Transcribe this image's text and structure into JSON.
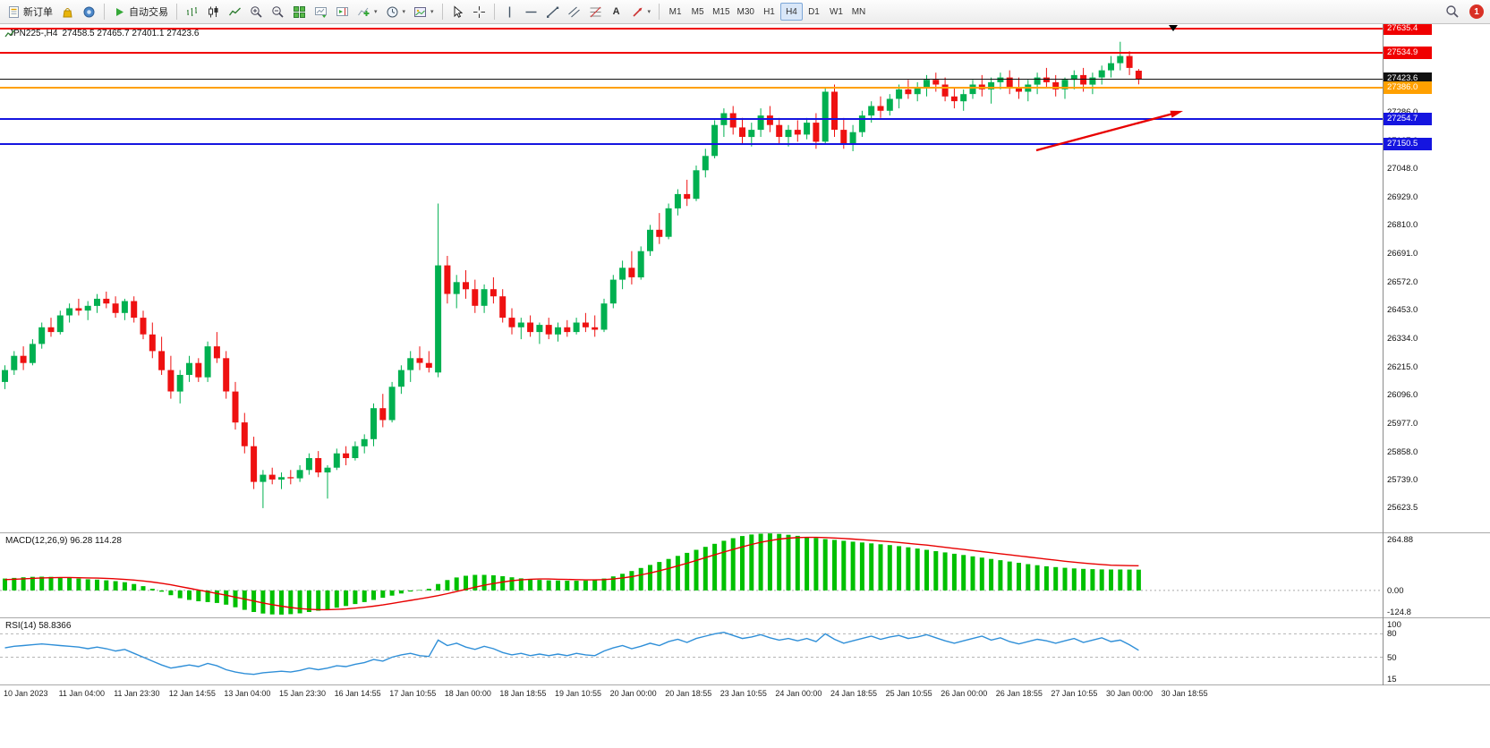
{
  "toolbar": {
    "new_order_label": "新订单",
    "auto_trading_label": "自动交易",
    "text_tool_glyph": "A",
    "timeframes": [
      "M1",
      "M5",
      "M15",
      "M30",
      "H1",
      "H4",
      "D1",
      "W1",
      "MN"
    ],
    "active_timeframe": "H4",
    "notification_badge": "1"
  },
  "chart": {
    "symbol_period": "JPN225-,H4",
    "ohlc_text": "27458.5 27465.7 27401.1 27423.6",
    "lines": [
      {
        "name": "resistance-line-upper",
        "label": "27635.4",
        "value": 27635.4,
        "color": "#f00000",
        "width": 2
      },
      {
        "name": "resistance-line-lower",
        "label": "27534.9",
        "value": 27534.9,
        "color": "#f00000",
        "width": 2
      },
      {
        "name": "current-price-line",
        "label": "27423.6",
        "value": 27423.6,
        "color": "#111111",
        "width": 1,
        "type": "current"
      },
      {
        "name": "pivot-line-orange",
        "label": "27386.0",
        "value": 27386.0,
        "color": "#ffa000",
        "width": 2
      },
      {
        "name": "support-line-upper",
        "label": "27254.7",
        "value": 27254.7,
        "color": "#1515e0",
        "width": 2
      },
      {
        "name": "support-line-lower",
        "label": "27150.5",
        "value": 27150.5,
        "color": "#1515e0",
        "width": 2
      }
    ],
    "y_ticks": [
      27643.0,
      27524.0,
      27405.0,
      27286.0,
      27167.0,
      27048.0,
      26929.0,
      26810.0,
      26691.0,
      26572.0,
      26453.0,
      26334.0,
      26215.0,
      26096.0,
      25977.0,
      25858.0,
      25739.0,
      25623.5
    ],
    "x_labels": [
      "10 Jan 2023",
      "11 Jan 04:00",
      "11 Jan 23:30",
      "12 Jan 14:55",
      "13 Jan 04:00",
      "15 Jan 23:30",
      "16 Jan 14:55",
      "17 Jan 10:55",
      "18 Jan 00:00",
      "18 Jan 18:55",
      "19 Jan 10:55",
      "20 Jan 00:00",
      "20 Jan 18:55",
      "23 Jan 10:55",
      "24 Jan 00:00",
      "24 Jan 18:55",
      "25 Jan 10:55",
      "26 Jan 00:00",
      "26 Jan 18:55",
      "27 Jan 10:55",
      "30 Jan 00:00",
      "30 Jan 18:55"
    ]
  },
  "macd": {
    "label": "MACD(12,26,9) 96.28 114.28",
    "ticks": [
      "264.88",
      "0.00",
      "-124.8"
    ]
  },
  "rsi": {
    "label": "RSI(14) 58.8366",
    "ticks": [
      "100",
      "80",
      "50",
      "15"
    ]
  },
  "chart_data": [
    {
      "type": "candlestick",
      "symbol": "JPN225-",
      "timeframe": "H4",
      "ylim": [
        25518,
        27654
      ],
      "bull_color": "#00b050",
      "bear_color": "#ee1111",
      "candles": [
        [
          26150,
          26220,
          26120,
          26200
        ],
        [
          26200,
          26280,
          26180,
          26260
        ],
        [
          26260,
          26300,
          26200,
          26230
        ],
        [
          26230,
          26330,
          26220,
          26310
        ],
        [
          26310,
          26400,
          26290,
          26380
        ],
        [
          26380,
          26420,
          26340,
          26360
        ],
        [
          26360,
          26450,
          26350,
          26430
        ],
        [
          26430,
          26480,
          26400,
          26460
        ],
        [
          26460,
          26500,
          26430,
          26450
        ],
        [
          26450,
          26490,
          26410,
          26470
        ],
        [
          26470,
          26520,
          26440,
          26500
        ],
        [
          26500,
          26530,
          26460,
          26480
        ],
        [
          26480,
          26510,
          26420,
          26440
        ],
        [
          26440,
          26500,
          26410,
          26490
        ],
        [
          26490,
          26510,
          26400,
          26420
        ],
        [
          26420,
          26450,
          26330,
          26350
        ],
        [
          26350,
          26400,
          26250,
          26280
        ],
        [
          26280,
          26340,
          26180,
          26200
        ],
        [
          26200,
          26260,
          26080,
          26110
        ],
        [
          26110,
          26200,
          26060,
          26180
        ],
        [
          26180,
          26260,
          26150,
          26230
        ],
        [
          26230,
          26250,
          26150,
          26170
        ],
        [
          26170,
          26320,
          26150,
          26300
        ],
        [
          26300,
          26360,
          26230,
          26250
        ],
        [
          26250,
          26280,
          26080,
          26110
        ],
        [
          26110,
          26150,
          25950,
          25980
        ],
        [
          25980,
          26020,
          25850,
          25880
        ],
        [
          25880,
          25920,
          25700,
          25730
        ],
        [
          25730,
          25780,
          25620,
          25760
        ],
        [
          25760,
          25790,
          25720,
          25740
        ],
        [
          25740,
          25770,
          25700,
          25750
        ],
        [
          25750,
          25780,
          25720,
          25745
        ],
        [
          25745,
          25800,
          25730,
          25780
        ],
        [
          25780,
          25850,
          25760,
          25830
        ],
        [
          25830,
          25860,
          25750,
          25770
        ],
        [
          25770,
          25800,
          25660,
          25790
        ],
        [
          25790,
          25870,
          25780,
          25850
        ],
        [
          25850,
          25880,
          25800,
          25830
        ],
        [
          25830,
          25900,
          25820,
          25880
        ],
        [
          25880,
          25930,
          25850,
          25910
        ],
        [
          25910,
          26060,
          25880,
          26040
        ],
        [
          26040,
          26100,
          25960,
          25990
        ],
        [
          25990,
          26150,
          25980,
          26130
        ],
        [
          26130,
          26220,
          26100,
          26200
        ],
        [
          26200,
          26280,
          26150,
          26250
        ],
        [
          26250,
          26300,
          26200,
          26230
        ],
        [
          26230,
          26280,
          26190,
          26210
        ],
        [
          26190,
          26900,
          26170,
          26640
        ],
        [
          26640,
          26680,
          26480,
          26520
        ],
        [
          26520,
          26600,
          26460,
          26570
        ],
        [
          26570,
          26620,
          26500,
          26540
        ],
        [
          26540,
          26580,
          26440,
          26470
        ],
        [
          26470,
          26560,
          26440,
          26540
        ],
        [
          26540,
          26590,
          26480,
          26510
        ],
        [
          26510,
          26540,
          26400,
          26420
        ],
        [
          26420,
          26460,
          26350,
          26380
        ],
        [
          26380,
          26420,
          26330,
          26400
        ],
        [
          26400,
          26430,
          26340,
          26360
        ],
        [
          26360,
          26400,
          26310,
          26390
        ],
        [
          26390,
          26420,
          26330,
          26350
        ],
        [
          26350,
          26400,
          26320,
          26380
        ],
        [
          26380,
          26410,
          26340,
          26360
        ],
        [
          26360,
          26420,
          26350,
          26400
        ],
        [
          26400,
          26440,
          26360,
          26380
        ],
        [
          26380,
          26430,
          26340,
          26370
        ],
        [
          26370,
          26500,
          26360,
          26480
        ],
        [
          26480,
          26600,
          26460,
          26580
        ],
        [
          26580,
          26660,
          26540,
          26630
        ],
        [
          26630,
          26700,
          26560,
          26590
        ],
        [
          26590,
          26720,
          26580,
          26700
        ],
        [
          26700,
          26810,
          26680,
          26790
        ],
        [
          26790,
          26860,
          26730,
          26760
        ],
        [
          26760,
          26900,
          26750,
          26880
        ],
        [
          26880,
          26960,
          26850,
          26940
        ],
        [
          26940,
          27000,
          26890,
          26920
        ],
        [
          26920,
          27060,
          26910,
          27040
        ],
        [
          27040,
          27130,
          27010,
          27100
        ],
        [
          27100,
          27250,
          27090,
          27230
        ],
        [
          27230,
          27300,
          27180,
          27280
        ],
        [
          27280,
          27310,
          27190,
          27220
        ],
        [
          27220,
          27260,
          27150,
          27180
        ],
        [
          27180,
          27240,
          27140,
          27210
        ],
        [
          27210,
          27300,
          27180,
          27270
        ],
        [
          27270,
          27310,
          27200,
          27230
        ],
        [
          27230,
          27260,
          27150,
          27180
        ],
        [
          27180,
          27230,
          27140,
          27210
        ],
        [
          27210,
          27250,
          27160,
          27190
        ],
        [
          27190,
          27260,
          27170,
          27240
        ],
        [
          27240,
          27280,
          27130,
          27160
        ],
        [
          27160,
          27390,
          27150,
          27370
        ],
        [
          27370,
          27400,
          27180,
          27210
        ],
        [
          27210,
          27260,
          27130,
          27150
        ],
        [
          27150,
          27230,
          27120,
          27200
        ],
        [
          27200,
          27290,
          27180,
          27270
        ],
        [
          27270,
          27330,
          27240,
          27310
        ],
        [
          27310,
          27350,
          27260,
          27290
        ],
        [
          27290,
          27360,
          27270,
          27340
        ],
        [
          27340,
          27400,
          27300,
          27380
        ],
        [
          27380,
          27420,
          27340,
          27360
        ],
        [
          27360,
          27410,
          27330,
          27390
        ],
        [
          27390,
          27440,
          27350,
          27420
        ],
        [
          27420,
          27450,
          27370,
          27400
        ],
        [
          27400,
          27430,
          27330,
          27350
        ],
        [
          27350,
          27390,
          27300,
          27330
        ],
        [
          27330,
          27380,
          27290,
          27360
        ],
        [
          27360,
          27420,
          27340,
          27400
        ],
        [
          27400,
          27440,
          27350,
          27380
        ],
        [
          27380,
          27430,
          27320,
          27410
        ],
        [
          27410,
          27450,
          27380,
          27430
        ],
        [
          27430,
          27460,
          27360,
          27390
        ],
        [
          27390,
          27430,
          27340,
          27370
        ],
        [
          27370,
          27420,
          27330,
          27400
        ],
        [
          27400,
          27450,
          27360,
          27430
        ],
        [
          27430,
          27470,
          27390,
          27410
        ],
        [
          27410,
          27440,
          27350,
          27380
        ],
        [
          27380,
          27430,
          27340,
          27420
        ],
        [
          27420,
          27460,
          27380,
          27440
        ],
        [
          27440,
          27470,
          27370,
          27400
        ],
        [
          27400,
          27450,
          27360,
          27430
        ],
        [
          27430,
          27480,
          27400,
          27460
        ],
        [
          27460,
          27520,
          27430,
          27490
        ],
        [
          27490,
          27580,
          27460,
          27520
        ],
        [
          27520,
          27540,
          27440,
          27470
        ],
        [
          27458.5,
          27465.7,
          27401.1,
          27423.6
        ]
      ]
    },
    {
      "type": "bar",
      "name": "MACD(12,26,9)",
      "ylim": [
        -124.8,
        264.88
      ],
      "histogram_color": "#00c000",
      "signal_color": "#e80000",
      "current_values": [
        96.28,
        114.28
      ],
      "histogram": [
        55,
        58,
        61,
        63,
        64,
        63,
        61,
        58,
        55,
        52,
        50,
        47,
        43,
        38,
        30,
        20,
        8,
        -6,
        -22,
        -36,
        -44,
        -50,
        -54,
        -58,
        -66,
        -78,
        -90,
        -100,
        -107,
        -111,
        -112,
        -110,
        -106,
        -100,
        -94,
        -88,
        -80,
        -72,
        -63,
        -54,
        -44,
        -34,
        -24,
        -14,
        -5,
        2,
        8,
        30,
        48,
        60,
        68,
        72,
        72,
        70,
        66,
        61,
        56,
        52,
        49,
        47,
        46,
        45,
        45,
        46,
        48,
        55,
        65,
        77,
        90,
        104,
        118,
        132,
        146,
        160,
        174,
        188,
        202,
        216,
        230,
        242,
        252,
        259,
        263,
        264,
        262,
        258,
        253,
        248,
        243,
        238,
        234,
        230,
        226,
        222,
        218,
        214,
        210,
        205,
        200,
        194,
        188,
        182,
        176,
        170,
        164,
        158,
        152,
        146,
        140,
        134,
        128,
        122,
        117,
        112,
        108,
        105,
        102,
        100,
        98.5,
        97.5,
        97,
        96.8,
        96.5,
        96.28
      ],
      "signal": [
        50,
        52,
        54,
        56,
        58,
        59,
        60,
        60,
        59,
        58,
        57,
        56,
        54,
        51,
        48,
        44,
        39,
        33,
        26,
        18,
        10,
        2,
        -6,
        -14,
        -22,
        -31,
        -40,
        -49,
        -58,
        -66,
        -73,
        -79,
        -84,
        -87,
        -89,
        -89,
        -88,
        -86,
        -82,
        -78,
        -73,
        -67,
        -60,
        -53,
        -46,
        -39,
        -32,
        -24,
        -15,
        -5,
        5,
        15,
        24,
        32,
        39,
        45,
        49,
        52,
        53,
        53,
        52,
        51,
        50,
        49,
        49,
        50,
        53,
        58,
        64,
        72,
        81,
        91,
        102,
        114,
        126,
        139,
        152,
        165,
        178,
        190,
        202,
        213,
        223,
        231,
        238,
        242,
        245,
        246,
        246,
        245,
        243,
        241,
        238,
        235,
        232,
        229,
        226,
        222,
        218,
        214,
        210,
        205,
        200,
        195,
        190,
        185,
        180,
        175,
        170,
        165,
        160,
        155,
        150,
        145,
        140,
        135,
        131,
        127,
        123,
        120,
        117,
        116,
        115,
        114.28
      ]
    },
    {
      "type": "line",
      "name": "RSI(14)",
      "ylim": [
        15,
        100
      ],
      "levels": [
        80,
        50
      ],
      "line_color": "#2f8fd8",
      "current_value": 58.8366,
      "values": [
        62,
        64,
        65,
        66,
        67,
        66,
        65,
        64,
        63,
        61,
        63,
        61,
        58,
        60,
        55,
        50,
        45,
        40,
        36,
        38,
        40,
        38,
        42,
        39,
        34,
        31,
        29,
        28,
        30,
        31,
        32,
        31,
        33,
        36,
        34,
        36,
        39,
        38,
        41,
        43,
        47,
        45,
        50,
        53,
        55,
        52,
        51,
        72,
        65,
        68,
        63,
        60,
        64,
        61,
        56,
        53,
        55,
        52,
        54,
        52,
        54,
        52,
        55,
        53,
        52,
        58,
        62,
        65,
        61,
        64,
        68,
        65,
        70,
        73,
        69,
        74,
        77,
        80,
        82,
        78,
        74,
        76,
        79,
        75,
        72,
        74,
        71,
        74,
        70,
        80,
        73,
        68,
        71,
        74,
        77,
        73,
        76,
        78,
        74,
        76,
        79,
        75,
        71,
        68,
        71,
        74,
        77,
        72,
        75,
        70,
        67,
        70,
        73,
        71,
        68,
        71,
        74,
        69,
        72,
        75,
        70,
        72,
        66,
        58.84
      ]
    }
  ]
}
